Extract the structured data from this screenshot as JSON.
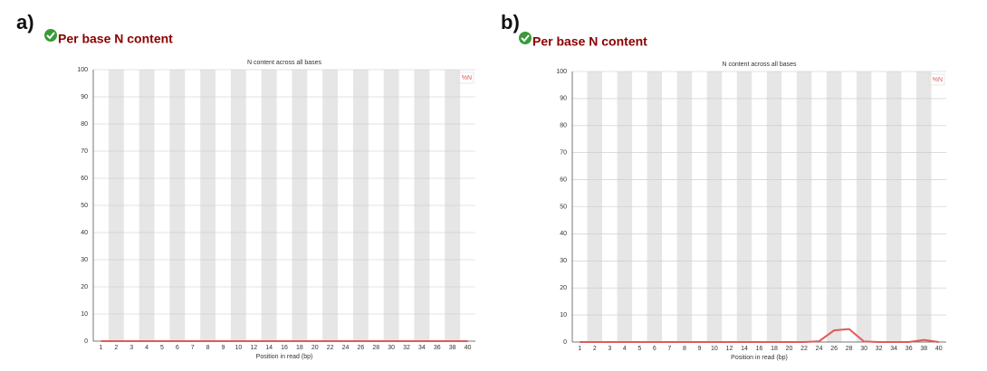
{
  "chart_data": [
    {
      "type": "line",
      "panel_label": "a)",
      "heading": "Per base N content",
      "title": "N content across all bases",
      "xlabel": "Position in read (bp)",
      "categories": [
        "1",
        "2",
        "3",
        "4",
        "5",
        "6",
        "7",
        "8",
        "9",
        "10",
        "12",
        "14",
        "16",
        "18",
        "20",
        "22",
        "24",
        "26",
        "28",
        "30",
        "32",
        "34",
        "36",
        "38",
        "40"
      ],
      "series": [
        {
          "name": "%N",
          "color": "#e05a5a",
          "values": [
            0,
            0,
            0,
            0,
            0,
            0,
            0,
            0,
            0,
            0,
            0,
            0,
            0,
            0,
            0,
            0,
            0,
            0,
            0,
            0,
            0,
            0,
            0,
            0,
            0
          ]
        }
      ],
      "ylim": [
        0,
        100
      ],
      "yticks": [
        0,
        10,
        20,
        30,
        40,
        50,
        60,
        70,
        80,
        90,
        100
      ],
      "grid": true
    },
    {
      "type": "line",
      "panel_label": "b)",
      "heading": "Per base N content",
      "title": "N content across all bases",
      "xlabel": "Position in read (bp)",
      "categories": [
        "1",
        "2",
        "3",
        "4",
        "5",
        "6",
        "7",
        "8",
        "9",
        "10",
        "12",
        "14",
        "16",
        "18",
        "20",
        "22",
        "24",
        "26",
        "28",
        "30",
        "32",
        "34",
        "36",
        "38",
        "40"
      ],
      "series": [
        {
          "name": "%N",
          "color": "#e05a5a",
          "values": [
            0,
            0,
            0,
            0,
            0,
            0,
            0,
            0,
            0,
            0,
            0,
            0,
            0,
            0,
            0,
            0,
            0.3,
            4.3,
            4.8,
            0.2,
            0,
            0,
            0,
            0.8,
            0
          ]
        }
      ],
      "ylim": [
        0,
        100
      ],
      "yticks": [
        0,
        10,
        20,
        30,
        40,
        50,
        60,
        70,
        80,
        90,
        100
      ],
      "grid": true
    }
  ]
}
